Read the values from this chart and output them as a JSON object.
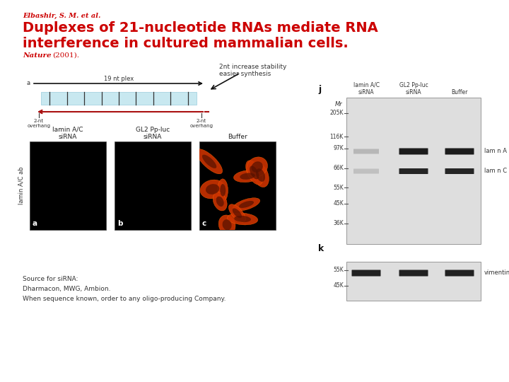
{
  "bg_color": "#ffffff",
  "author_text": "Elbashir, S. M. et al.",
  "title_line1": "Duplexes of 21-nucleotide RNAs mediate RNA",
  "title_line2": "interference in cultured mammalian cells.",
  "title_color": "#cc0000",
  "author_color": "#cc0000",
  "journal_color": "#cc0000",
  "annotation_text": "2nt increase stability\neasier synthesis",
  "source_text": "Source for siRNA:\nDharmacon, MWG, Ambion.\nWhen sequence known, order to any oligo-producing Company.",
  "blot_j_label": "j",
  "blot_k_label": "k",
  "blot_col_labels": [
    "lamin A/C\nsiRNA",
    "GL2 Pp-luc\nsiRNA",
    "Buffer"
  ],
  "blot_j_rows": [
    "205K",
    "116K",
    "97K",
    "66K",
    "55K",
    "45K",
    "36K"
  ],
  "blot_k_rows": [
    "55K",
    "45K"
  ],
  "mr_label": "Mr",
  "band_labels_j": [
    "lam n A",
    "lam n C"
  ],
  "band_label_k": "vimentin",
  "panel_a_label": "lamin A/C\nsiRNA",
  "panel_b_label": "GL2 Pp-luc\nsiRNA",
  "panel_c_label": "Buffer",
  "lamin_ab_label": "lamin A/C ab",
  "diag_top_label": "19 nt plex",
  "diag_left_label": "a",
  "diag_overhang_left": "2-nt\noverhang",
  "diag_overhang_right": "2-nt\noverhang"
}
